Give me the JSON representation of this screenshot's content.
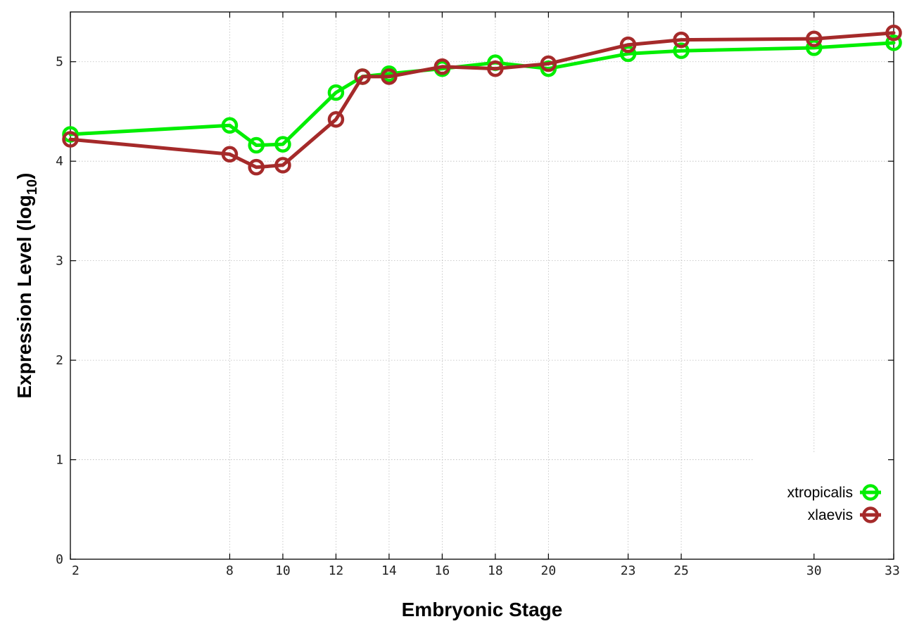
{
  "chart_data": {
    "type": "line",
    "xlabel": "Embryonic Stage",
    "ylabel_main": "Expression Level (log",
    "ylabel_sub": "10",
    "ylabel_close": ")",
    "xlim": [
      2,
      33
    ],
    "ylim": [
      0,
      5.5
    ],
    "xticks": [
      2,
      8,
      10,
      12,
      14,
      16,
      18,
      20,
      23,
      25,
      30,
      33
    ],
    "yticks": [
      0,
      1,
      2,
      3,
      4,
      5
    ],
    "x": [
      2,
      8,
      9,
      10,
      12,
      13,
      14,
      16,
      18,
      20,
      23,
      25,
      30,
      33
    ],
    "grid": true,
    "legend_position": "bottom-right",
    "series": [
      {
        "name": "xtropicalis",
        "color": "#00ee00",
        "values": [
          4.27,
          4.36,
          4.16,
          4.17,
          4.69,
          4.85,
          4.88,
          4.93,
          4.99,
          4.93,
          5.08,
          5.11,
          5.14,
          5.19
        ]
      },
      {
        "name": "xlaevis",
        "color": "#a52a2a",
        "values": [
          4.22,
          4.07,
          3.94,
          3.96,
          4.42,
          4.85,
          4.85,
          4.95,
          4.93,
          4.98,
          5.17,
          5.22,
          5.23,
          5.29
        ]
      }
    ]
  }
}
